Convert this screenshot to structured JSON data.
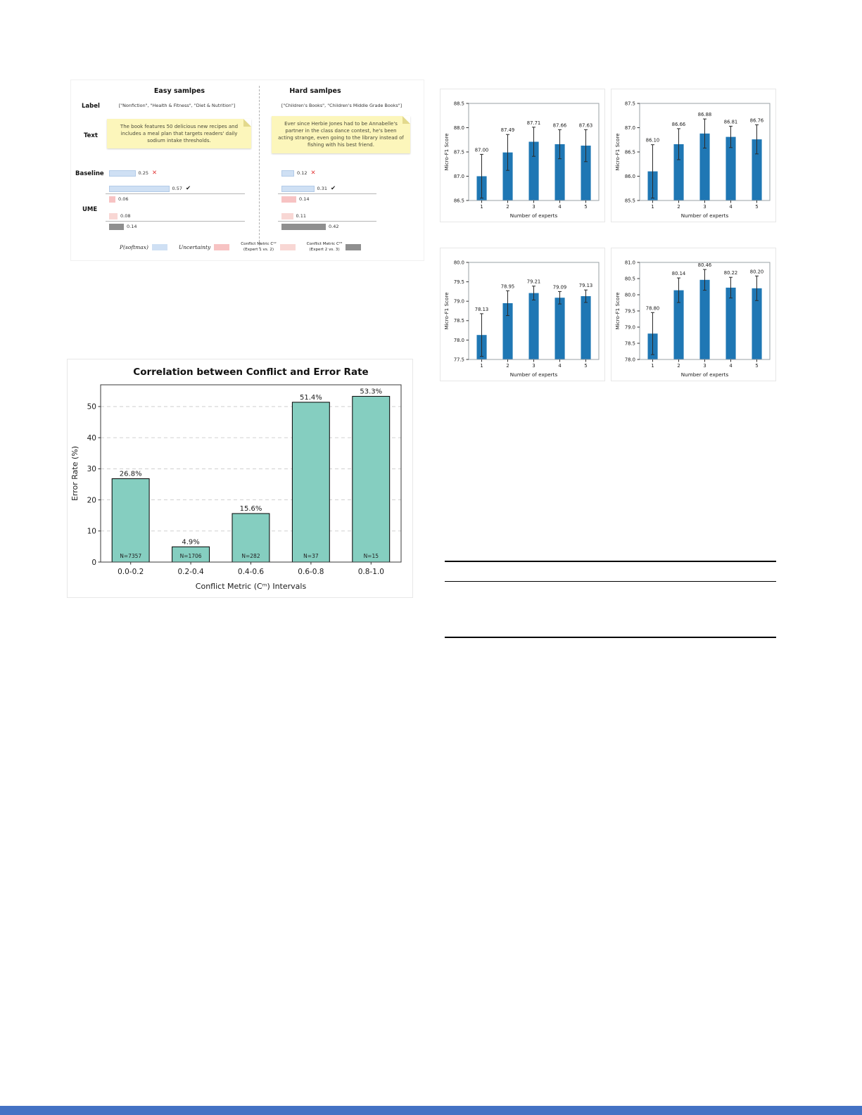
{
  "colors": {
    "softmax_blue": "#cfe0f4",
    "softmax_blue_border": "#b3cbe8",
    "uncertainty_pink": "#f7c3c3",
    "conflict12_pink": "#f8d7d4",
    "conflict23_gray": "#8f8f8f",
    "expert_bar_blue": "#1f77b4",
    "conflict_bar_teal": "#85cec0",
    "sticky_yellow": "#fcf6bb",
    "sticky_fold": "#e3d98c",
    "mark_red": "#e23b3b",
    "mark_black": "#1a1a1a",
    "bottom_bar_blue": "#4472c4"
  },
  "sample_diagram": {
    "row_labels": [
      "Label",
      "Text",
      "Baseline",
      "UME"
    ],
    "columns": [
      {
        "header": "Easy samlpes",
        "label_text": "[\"Nonfiction\", \"Health & Fitness\", \"Diet & Nutrition\"]",
        "note_text": "The book features 50 delicious new recipes and includes a meal plan that targets readers' daily sodium intake thresholds.",
        "baseline_bar": {
          "value": 0.25,
          "display": "0.25",
          "mark": "✕"
        },
        "ume_bars": [
          {
            "kind": "softmax",
            "value": 0.57,
            "display": "0.57",
            "mark": "✔"
          },
          {
            "kind": "uncertainty",
            "value": 0.06,
            "display": "0.06"
          },
          {
            "kind": "conflict12",
            "value": 0.08,
            "display": "0.08"
          },
          {
            "kind": "conflict23",
            "value": 0.14,
            "display": "0.14"
          }
        ]
      },
      {
        "header": "Hard samlpes",
        "label_text": "[\"Children's Books\", \"Children's Middle Grade Books\"]",
        "note_text": "Ever since Herbie Jones had to be Annabelle's partner in the class dance contest, he's been acting strange, even going to the library instead of fishing with his best friend.",
        "baseline_bar": {
          "value": 0.12,
          "display": "0.12",
          "mark": "✕"
        },
        "ume_bars": [
          {
            "kind": "softmax",
            "value": 0.31,
            "display": "0.31",
            "mark": "✔"
          },
          {
            "kind": "uncertainty",
            "value": 0.14,
            "display": "0.14"
          },
          {
            "kind": "conflict12",
            "value": 0.11,
            "display": "0.11"
          },
          {
            "kind": "conflict23",
            "value": 0.42,
            "display": "0.42"
          }
        ]
      }
    ],
    "legend": [
      {
        "label": "P(softmax)",
        "swatch": "softmax_blue"
      },
      {
        "label": "Uncertainty",
        "swatch": "uncertainty_pink"
      },
      {
        "label": "Conflict Metric C¹²",
        "sublabel": "(Expert 1 vs. 2)",
        "swatch": "conflict12_pink"
      },
      {
        "label": "Conflict Metric C²³",
        "sublabel": "(Expert 2 vs. 3)",
        "swatch": "conflict23_gray"
      }
    ]
  },
  "chart_data": [
    {
      "id": "experts_a",
      "type": "bar",
      "variant": "small",
      "categories": [
        "1",
        "2",
        "3",
        "4",
        "5"
      ],
      "values": [
        87.0,
        87.49,
        87.71,
        87.66,
        87.63
      ],
      "errors": [
        0.45,
        0.37,
        0.3,
        0.3,
        0.33
      ],
      "bar_labels": [
        "87.00",
        "87.49",
        "87.71",
        "87.66",
        "87.63"
      ],
      "xlabel": "Number of experts",
      "ylabel": "Micro-F1 Score",
      "ylim": [
        86.5,
        88.5
      ],
      "ytick_step": 0.5,
      "ytick_decimals": 1,
      "bar_color": "#1f77b4"
    },
    {
      "id": "experts_b",
      "type": "bar",
      "variant": "small",
      "categories": [
        "1",
        "2",
        "3",
        "4",
        "5"
      ],
      "values": [
        86.1,
        86.66,
        86.88,
        86.81,
        86.76
      ],
      "errors": [
        0.55,
        0.32,
        0.3,
        0.22,
        0.3
      ],
      "bar_labels": [
        "86.10",
        "86.66",
        "86.88",
        "86.81",
        "86.76"
      ],
      "xlabel": "Number of experts",
      "ylabel": "Micro-F1 Score",
      "ylim": [
        85.5,
        87.5
      ],
      "ytick_step": 0.5,
      "ytick_decimals": 1,
      "bar_color": "#1f77b4"
    },
    {
      "id": "experts_c",
      "type": "bar",
      "variant": "small",
      "categories": [
        "1",
        "2",
        "3",
        "4",
        "5"
      ],
      "values": [
        78.13,
        78.95,
        79.21,
        79.09,
        79.13
      ],
      "errors": [
        0.55,
        0.32,
        0.18,
        0.16,
        0.16
      ],
      "bar_labels": [
        "78.13",
        "78.95",
        "79.21",
        "79.09",
        "79.13"
      ],
      "xlabel": "Number of experts",
      "ylabel": "Micro-F1 Score",
      "ylim": [
        77.5,
        80.0
      ],
      "ytick_step": 0.5,
      "ytick_decimals": 1,
      "bar_color": "#1f77b4"
    },
    {
      "id": "experts_d",
      "type": "bar",
      "variant": "small",
      "categories": [
        "1",
        "2",
        "3",
        "4",
        "5"
      ],
      "values": [
        78.8,
        80.14,
        80.46,
        80.22,
        80.2
      ],
      "errors": [
        0.65,
        0.38,
        0.32,
        0.32,
        0.38
      ],
      "bar_labels": [
        "78.80",
        "80.14",
        "80.46",
        "80.22",
        "80.20"
      ],
      "xlabel": "Number of experts",
      "ylabel": "Micro-F1 Score",
      "ylim": [
        78.0,
        81.0
      ],
      "ytick_step": 0.5,
      "ytick_decimals": 1,
      "bar_color": "#1f77b4"
    },
    {
      "id": "conflict_error",
      "type": "bar",
      "variant": "large",
      "title": "Correlation between Conflict and Error Rate",
      "categories": [
        "0.0-0.2",
        "0.2-0.4",
        "0.4-0.6",
        "0.6-0.8",
        "0.8-1.0"
      ],
      "values": [
        26.8,
        4.9,
        15.6,
        51.4,
        53.3
      ],
      "bar_labels": [
        "26.8%",
        "4.9%",
        "15.6%",
        "51.4%",
        "53.3%"
      ],
      "n_labels": [
        "N=7357",
        "N=1706",
        "N=282",
        "N=37",
        "N=15"
      ],
      "xlabel": "Conflict Metric (Cᵐ) Intervals",
      "ylabel": "Error Rate (%)",
      "ylim": [
        0,
        57
      ],
      "yticks": [
        0,
        10,
        20,
        30,
        40,
        50
      ],
      "ytick_decimals": 0,
      "grid": true,
      "bar_color": "#85cec0",
      "bar_edge": "#000000"
    }
  ]
}
